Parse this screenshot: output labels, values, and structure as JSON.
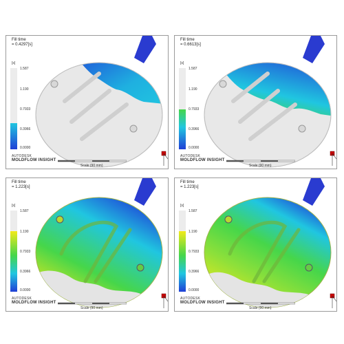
{
  "panels": [
    {
      "title": "Fill time",
      "value": "= 0.4297[s]",
      "fill_level": 0.27
    },
    {
      "title": "Fill time",
      "value": "= 0.6613[s]",
      "fill_level": 0.42
    },
    {
      "title": "Fill time",
      "value": "= 1.223[s]",
      "fill_level": 1.0
    },
    {
      "title": "Fill time",
      "value": "= 1.223[s]",
      "fill_level": 1.0
    }
  ],
  "legend": {
    "unit": "[s]",
    "ticks": [
      "1.587",
      "1.190",
      "0.7933",
      "0.3966",
      "0.0000"
    ]
  },
  "brand": {
    "line1": "AUTODESK",
    "line2": "MOLDFLOW INSIGHT"
  },
  "scale_label": "Scale (90 mm)",
  "colors": {
    "blue": "#1f3fd6",
    "cyan": "#20c6e0",
    "green": "#46d64a",
    "yellow": "#f2ea1a",
    "grey_part": "#e6e6e6",
    "runner": "#2a3bd0"
  }
}
